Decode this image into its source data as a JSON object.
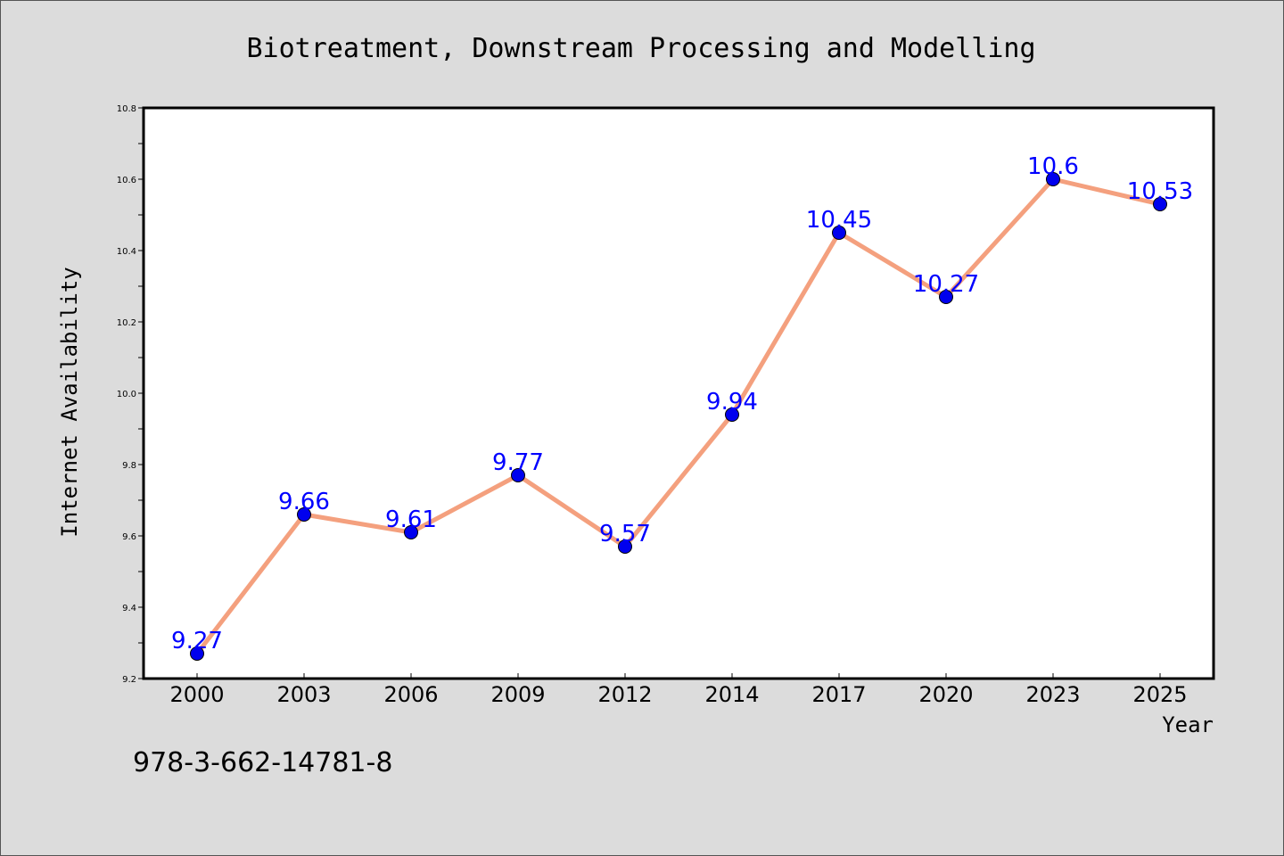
{
  "chart_data": {
    "type": "line",
    "title": "Biotreatment, Downstream Processing and Modelling",
    "xlabel": "Year",
    "ylabel": "Internet Availability",
    "categories": [
      "2000",
      "2003",
      "2006",
      "2009",
      "2012",
      "2014",
      "2017",
      "2020",
      "2023",
      "2025"
    ],
    "series": [
      {
        "values": [
          9.27,
          9.66,
          9.61,
          9.77,
          9.57,
          9.94,
          10.45,
          10.27,
          10.6,
          10.53
        ],
        "data_labels": [
          "9.27",
          "9.66",
          "9.61",
          "9.77",
          "9.57",
          "9.94",
          "10.45",
          "10.27",
          "10.6",
          "10.53"
        ]
      }
    ],
    "ylim": [
      9.2,
      10.8
    ],
    "yticks": [
      "9.2",
      "9.4",
      "9.6",
      "9.8",
      "10.0",
      "10.2",
      "10.4",
      "10.6",
      "10.8"
    ],
    "grid": false,
    "legend": "none",
    "colors": {
      "line": "#f4a07e",
      "marker": "#0000ee",
      "data_label": "#0000ff",
      "background": "#dcdcdc",
      "plot_background": "#ffffff"
    }
  },
  "footer_text": "978-3-662-14781-8"
}
